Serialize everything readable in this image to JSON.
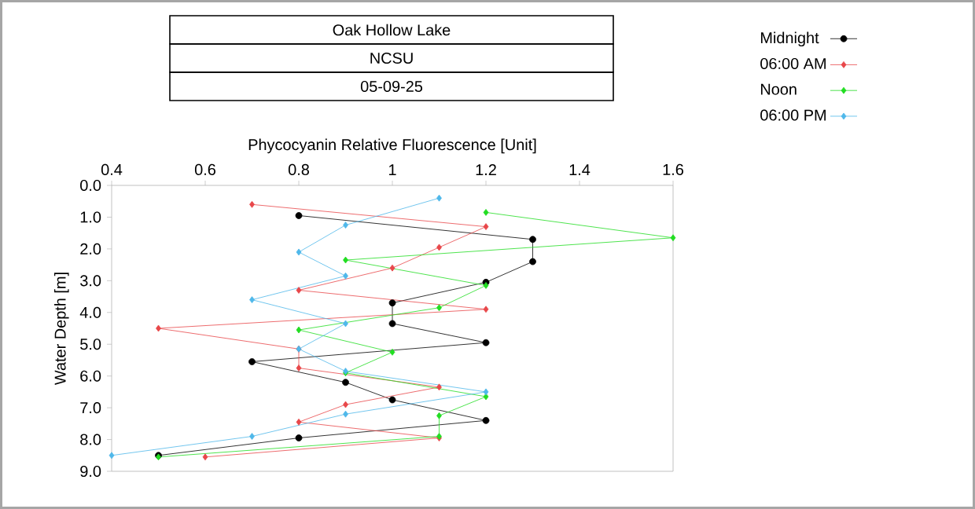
{
  "chart_data": {
    "type": "line",
    "title": "Oak Hollow Lake",
    "subtitle": "NCSU",
    "annotations": [
      "05-09-25"
    ],
    "xlabel": "Phycocyanin Relative Fluorescence [Unit]",
    "ylabel": "Water Depth [m]",
    "xlim": [
      0.4,
      1.6
    ],
    "xticks": [
      0.4,
      0.6,
      0.8,
      1,
      1.2,
      1.4,
      1.6
    ],
    "ylim": [
      9.0,
      0.0
    ],
    "yticks": [
      {
        "value": 0,
        "label": "0.0"
      },
      {
        "value": 1,
        "label": "1.0"
      },
      {
        "value": 2,
        "label": "2.0"
      },
      {
        "value": 3,
        "label": "3.0"
      },
      {
        "value": 4,
        "label": "4.0"
      },
      {
        "value": 5,
        "label": "5.0"
      },
      {
        "value": 6,
        "label": "6.0"
      },
      {
        "value": 7,
        "label": "7.0"
      },
      {
        "value": 8,
        "label": "8.0"
      },
      {
        "value": 9,
        "label": "9.0"
      }
    ],
    "grid": false,
    "legend": "top right",
    "line_style": "solid",
    "series": [
      {
        "name": "Midnight",
        "color": "#000000",
        "marker": "circle",
        "x": [
          0.8,
          1.3,
          1.3,
          1.2,
          1.0,
          1.0,
          1.2,
          0.7,
          0.9,
          1.0,
          1.2,
          0.8,
          0.5
        ],
        "values": [
          0.95,
          1.7,
          2.4,
          3.05,
          3.7,
          4.35,
          4.95,
          5.55,
          6.2,
          6.75,
          7.4,
          7.95,
          8.5
        ]
      },
      {
        "name": "06:00 AM",
        "color": "#e8474a",
        "marker": "diamond",
        "x": [
          0.7,
          1.2,
          1.1,
          1.0,
          0.8,
          1.2,
          0.5,
          0.8,
          0.8,
          1.1,
          0.9,
          0.8,
          1.1,
          0.6
        ],
        "values": [
          0.6,
          1.3,
          1.95,
          2.6,
          3.3,
          3.9,
          4.5,
          5.15,
          5.75,
          6.35,
          6.9,
          7.45,
          7.95,
          8.55
        ]
      },
      {
        "name": "Noon",
        "color": "#22dd22",
        "marker": "diamond",
        "x": [
          1.2,
          1.6,
          0.9,
          1.2,
          1.1,
          0.8,
          1.0,
          0.9,
          1.2,
          1.1,
          1.1,
          0.5
        ],
        "values": [
          0.85,
          1.65,
          2.35,
          3.15,
          3.85,
          4.55,
          5.25,
          5.9,
          6.65,
          7.25,
          7.9,
          8.55
        ]
      },
      {
        "name": "06:00 PM",
        "color": "#4fb8ea",
        "marker": "diamond",
        "x": [
          1.1,
          0.9,
          0.8,
          0.9,
          0.7,
          0.9,
          0.8,
          0.9,
          1.2,
          0.9,
          0.7,
          0.4
        ],
        "values": [
          0.4,
          1.25,
          2.1,
          2.85,
          3.6,
          4.35,
          5.15,
          5.85,
          6.5,
          7.2,
          7.9,
          8.5
        ]
      }
    ]
  }
}
